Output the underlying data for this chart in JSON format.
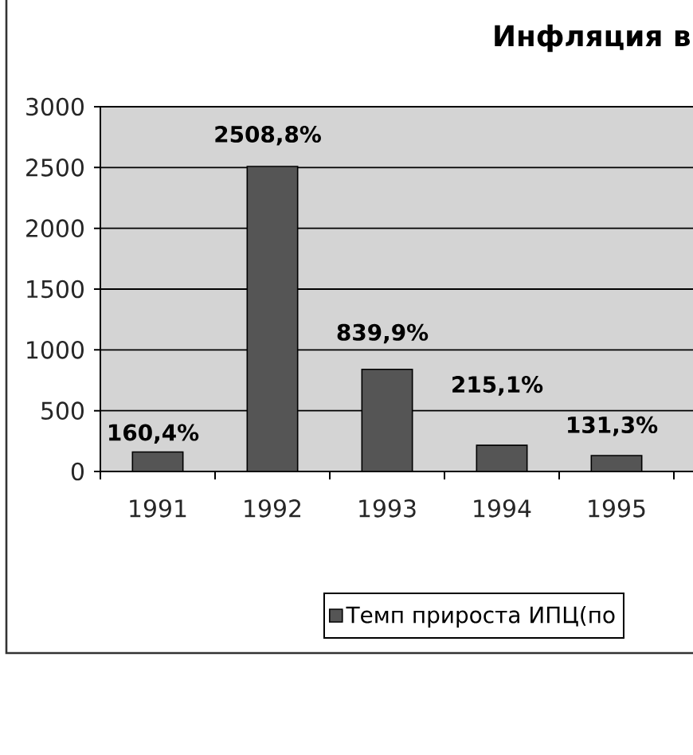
{
  "chart_data": {
    "type": "bar",
    "title": "Инфляция в",
    "categories": [
      "1991",
      "1992",
      "1993",
      "1994",
      "1995"
    ],
    "series": [
      {
        "name": "Темп прироста ИПЦ(по",
        "color": "#555555",
        "values": [
          160.4,
          2508.8,
          839.9,
          215.1,
          131.3
        ],
        "value_labels": [
          "160,4%",
          "2508,8%",
          "839,9%",
          "215,1%",
          "131,3%"
        ]
      }
    ],
    "ylim": [
      0,
      3000
    ],
    "yticks": [
      0,
      500,
      1000,
      1500,
      2000,
      2500,
      3000
    ],
    "grid": "y",
    "legend": "bottom"
  }
}
